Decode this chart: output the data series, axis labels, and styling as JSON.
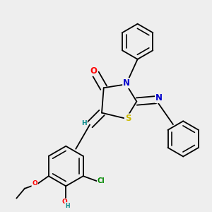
{
  "bg_color": "#eeeeee",
  "bond_color": "#000000",
  "bond_width": 1.3,
  "atom_colors": {
    "O": "#ff0000",
    "N": "#0000cc",
    "S": "#ccbb00",
    "Cl": "#008800",
    "H_label": "#008888",
    "C": "#000000"
  },
  "ring_r": 0.078,
  "benz_r": 0.088,
  "font_size": 7.5,
  "font_size_small": 6.5
}
